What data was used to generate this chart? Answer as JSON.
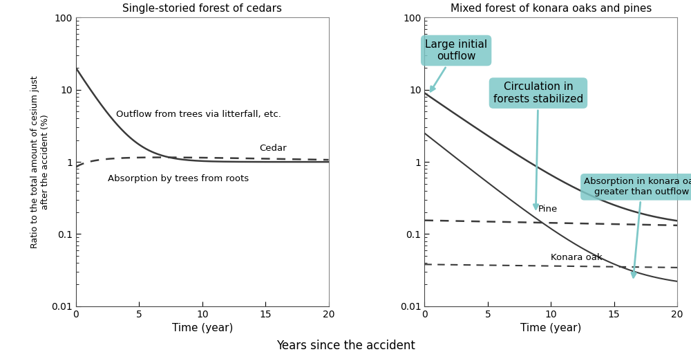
{
  "left_title": "Single-storied forest of cedars",
  "right_title": "Mixed forest of konara oaks and pines",
  "xlabel": "Time (year)",
  "bottom_label": "Years since the accident",
  "ylabel": "Ratio to the total amount of cesium just\nafter the accident (%)",
  "ylim": [
    0.01,
    100
  ],
  "xlim": [
    0,
    20
  ],
  "xticks": [
    0,
    5,
    10,
    15,
    20
  ],
  "yticks": [
    0.01,
    0.1,
    1,
    10,
    100
  ],
  "ytick_labels": [
    "0.01",
    "0.1",
    "1",
    "10",
    "100"
  ],
  "bg_color": "#ffffff",
  "line_color": "#3a3a3a",
  "callout_color": "#7ec8c8",
  "callout_alpha": 0.85
}
